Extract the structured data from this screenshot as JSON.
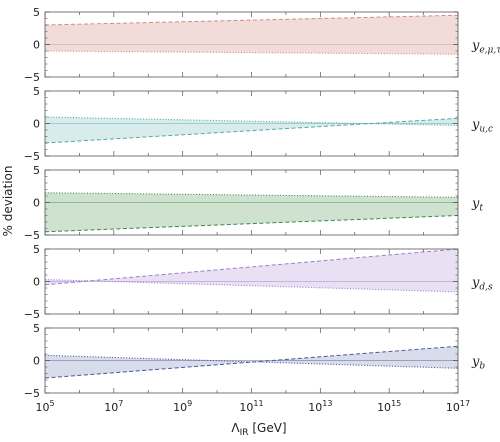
{
  "chart_data": {
    "type": "area",
    "ylabel": "% deviation",
    "xlabel": "Λ_IR [GeV]",
    "xlabel_main": "Λ",
    "xlabel_sub": "IR",
    "xlabel_unit": " [GeV]",
    "x_scale": "log",
    "xlim": [
      100000,
      100000000000000000
    ],
    "x_ticks": [
      {
        "value": 100000,
        "base": "10",
        "exp": "5"
      },
      {
        "value": 10000000,
        "base": "10",
        "exp": "7"
      },
      {
        "value": 1000000000,
        "base": "10",
        "exp": "9"
      },
      {
        "value": 100000000000,
        "base": "10",
        "exp": "11"
      },
      {
        "value": 10000000000000,
        "base": "10",
        "exp": "13"
      },
      {
        "value": 1000000000000000,
        "base": "10",
        "exp": "15"
      },
      {
        "value": 100000000000000000,
        "base": "10",
        "exp": "17"
      }
    ],
    "ylim": [
      -5,
      5
    ],
    "y_ticks": [
      -5,
      0,
      5
    ],
    "grid": false,
    "panels": [
      {
        "label_main": "y",
        "label_sub": "e,μ,τ",
        "fill": "#f1dcda",
        "line": "#d48a86",
        "dashed_x": [
          100000,
          100000000000000000
        ],
        "dashed_y": [
          3.0,
          4.5
        ],
        "dotted_x": [
          100000,
          100000000000000000
        ],
        "dotted_y": [
          -1.0,
          -1.5
        ],
        "central_y": 0
      },
      {
        "label_main": "y",
        "label_sub": "u,c",
        "fill": "#d8ecec",
        "line": "#5aa5ac",
        "dashed_x": [
          100000,
          100000000000000000
        ],
        "dashed_y": [
          -3.0,
          0.8
        ],
        "dotted_x": [
          100000,
          100000000000000000
        ],
        "dotted_y": [
          1.0,
          -0.3
        ],
        "central_y": 0
      },
      {
        "label_main": "y",
        "label_sub": "t",
        "fill": "#cfe2cf",
        "line": "#3a8a4a",
        "dashed_x": [
          100000,
          100000000000000000
        ],
        "dashed_y": [
          -4.5,
          -2.0
        ],
        "dotted_x": [
          100000,
          100000000000000000
        ],
        "dotted_y": [
          1.5,
          0.8
        ],
        "central_y": 0
      },
      {
        "label_main": "y",
        "label_sub": "d,s",
        "fill": "#e9e1f3",
        "line": "#9b7fcf",
        "dashed_x": [
          100000,
          100000000000000000
        ],
        "dashed_y": [
          -0.5,
          5.0
        ],
        "dotted_x": [
          100000,
          100000000000000000
        ],
        "dotted_y": [
          0.3,
          -1.6
        ],
        "central_y": 0
      },
      {
        "label_main": "y",
        "label_sub": "b",
        "fill": "#d9dcea",
        "line": "#4a5794",
        "dashed_x": [
          100000,
          100000000000000000
        ],
        "dashed_y": [
          -2.7,
          2.2
        ],
        "dotted_x": [
          100000,
          100000000000000000
        ],
        "dotted_y": [
          0.8,
          -1.2
        ],
        "central_y": 0
      }
    ]
  }
}
